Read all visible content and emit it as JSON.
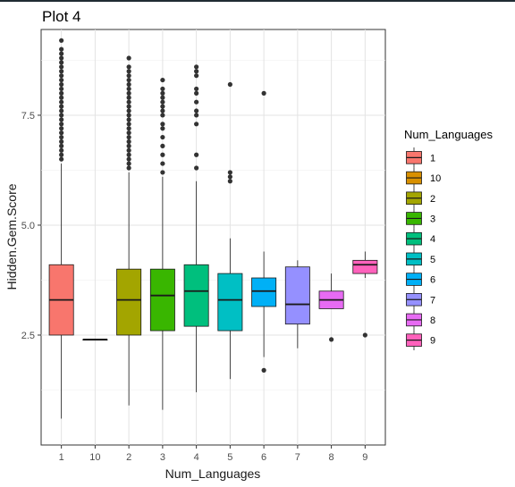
{
  "chart_data": {
    "type": "boxplot",
    "title": "Plot 4",
    "xlabel": "Num_Languages",
    "ylabel": "Hidden.Gem.Score",
    "ylim": [
      0,
      9.45
    ],
    "yticks": [
      "2.5",
      "5.0",
      "7.5"
    ],
    "ytick_values": [
      2.5,
      5.0,
      7.5
    ],
    "grid": true,
    "legend": {
      "title": "Num_Languages",
      "position": "right"
    },
    "categories": [
      "1",
      "10",
      "2",
      "3",
      "4",
      "5",
      "6",
      "7",
      "8",
      "9"
    ],
    "colors": [
      "#F8766D",
      "#D89000",
      "#A3A500",
      "#39B600",
      "#00BF7D",
      "#00BFC4",
      "#00B0F6",
      "#9590FF",
      "#E76BF3",
      "#FF62BC"
    ],
    "boxes": [
      {
        "category": "1",
        "min": 0.6,
        "q1": 2.5,
        "median": 3.3,
        "q3": 4.1,
        "max": 6.4,
        "outliers": [
          6.5,
          6.6,
          6.7,
          6.8,
          6.9,
          7.0,
          7.1,
          7.2,
          7.3,
          7.4,
          7.5,
          7.6,
          7.7,
          7.8,
          7.9,
          8.0,
          8.1,
          8.2,
          8.3,
          8.4,
          8.5,
          8.6,
          8.7,
          8.8,
          8.9,
          9.0,
          9.2
        ]
      },
      {
        "category": "10",
        "min": 2.4,
        "q1": 2.4,
        "median": 2.4,
        "q3": 2.4,
        "max": 2.4,
        "outliers": []
      },
      {
        "category": "2",
        "min": 0.9,
        "q1": 2.5,
        "median": 3.3,
        "q3": 4.0,
        "max": 6.2,
        "outliers": [
          6.3,
          6.4,
          6.5,
          6.6,
          6.7,
          6.8,
          6.9,
          7.0,
          7.1,
          7.2,
          7.3,
          7.4,
          7.5,
          7.6,
          7.7,
          7.8,
          7.9,
          8.0,
          8.1,
          8.2,
          8.3,
          8.4,
          8.5,
          8.6,
          8.8
        ]
      },
      {
        "category": "3",
        "min": 0.8,
        "q1": 2.6,
        "median": 3.4,
        "q3": 4.0,
        "max": 6.1,
        "outliers": [
          6.2,
          6.4,
          6.6,
          6.8,
          7.0,
          7.2,
          7.3,
          7.5,
          7.6,
          7.7,
          7.8,
          7.9,
          8.0,
          8.1,
          8.3
        ]
      },
      {
        "category": "4",
        "min": 1.2,
        "q1": 2.7,
        "median": 3.5,
        "q3": 4.1,
        "max": 6.0,
        "outliers": [
          6.3,
          6.6,
          7.3,
          7.5,
          7.6,
          7.8,
          8.0,
          8.1,
          8.4,
          8.5,
          8.6
        ]
      },
      {
        "category": "5",
        "min": 1.5,
        "q1": 2.6,
        "median": 3.3,
        "q3": 3.9,
        "max": 4.7,
        "outliers": [
          6.0,
          6.1,
          6.2,
          8.2
        ]
      },
      {
        "category": "6",
        "min": 2.0,
        "q1": 3.15,
        "median": 3.5,
        "q3": 3.8,
        "max": 4.4,
        "outliers": [
          1.7,
          8.0
        ]
      },
      {
        "category": "7",
        "min": 2.2,
        "q1": 2.75,
        "median": 3.2,
        "q3": 4.05,
        "max": 4.2,
        "outliers": []
      },
      {
        "category": "8",
        "min": 3.1,
        "q1": 3.1,
        "median": 3.3,
        "q3": 3.5,
        "max": 3.9,
        "outliers": [
          2.4
        ]
      },
      {
        "category": "9",
        "min": 3.8,
        "q1": 3.9,
        "median": 4.1,
        "q3": 4.2,
        "max": 4.4,
        "outliers": [
          2.5
        ]
      }
    ]
  }
}
